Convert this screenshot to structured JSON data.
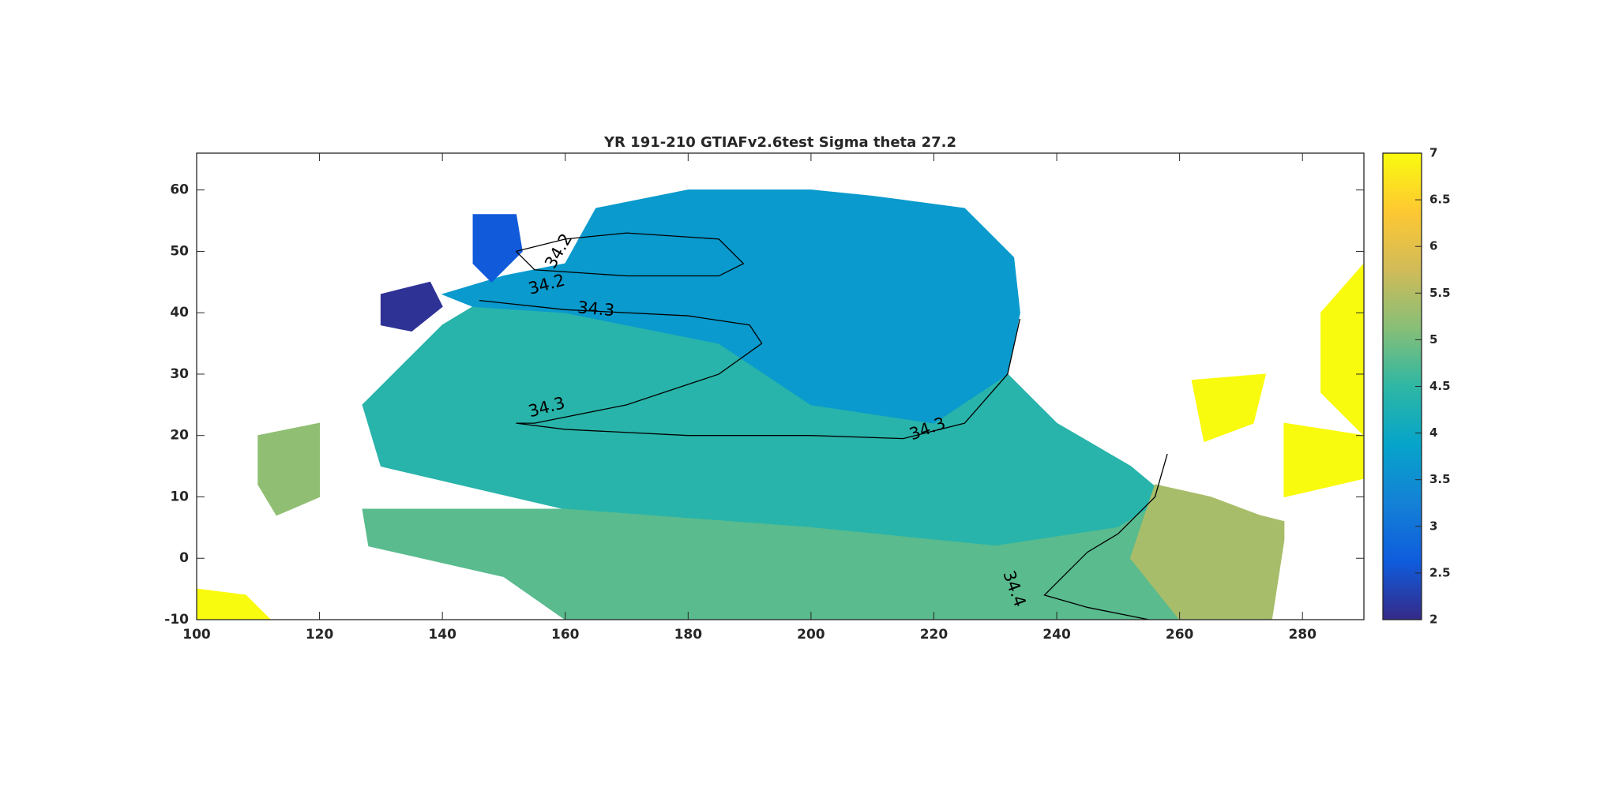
{
  "chart_data": {
    "type": "contour-map",
    "title": "YR 191-210 GTIAFv2.6test Sigma theta 27.2",
    "xlim": [
      100,
      290
    ],
    "ylim": [
      -10,
      66
    ],
    "xticks": [
      100,
      120,
      140,
      160,
      180,
      200,
      220,
      240,
      260,
      280
    ],
    "yticks": [
      -10,
      0,
      10,
      20,
      30,
      40,
      50,
      60
    ],
    "colorbar": {
      "lim": [
        2,
        7
      ],
      "ticks": [
        2,
        2.5,
        3,
        3.5,
        4,
        4.5,
        5,
        5.5,
        6,
        6.5,
        7
      ]
    },
    "colormap": [
      "#352a87",
      "#0f5cdd",
      "#1481d6",
      "#06a4ca",
      "#2eb7a4",
      "#87bf77",
      "#d1bb59",
      "#fec832",
      "#f9fb0e"
    ],
    "regions": [
      {
        "value": 4.4,
        "lon": [
          145,
          160,
          185,
          200,
          220,
          232,
          240,
          252,
          258,
          250,
          230,
          200,
          160,
          130,
          127,
          135,
          140
        ],
        "lat": [
          41,
          40,
          35,
          25,
          22,
          30,
          22,
          15,
          10,
          5,
          2,
          5,
          8,
          15,
          25,
          33,
          38
        ]
      },
      {
        "value": 3.7,
        "lon": [
          140,
          150,
          160,
          165,
          180,
          200,
          210,
          225,
          233,
          234,
          232,
          220,
          200,
          185,
          160,
          145
        ],
        "lat": [
          43,
          46,
          48,
          57,
          60,
          60,
          59,
          57,
          49,
          40,
          30,
          22,
          25,
          35,
          40,
          41
        ]
      },
      {
        "value": 4.8,
        "lon": [
          127,
          160,
          200,
          230,
          250,
          258,
          265,
          260,
          160,
          150,
          128
        ],
        "lat": [
          8,
          8,
          5,
          2,
          5,
          10,
          7,
          -10,
          -10,
          -3,
          2
        ]
      },
      {
        "value": 5.4,
        "lon": [
          256,
          265,
          273,
          277,
          277,
          275,
          260,
          252
        ],
        "lat": [
          12,
          10,
          7,
          6,
          3,
          -10,
          -10,
          0
        ]
      },
      {
        "value": 2.6,
        "lon": [
          145,
          152,
          153,
          148,
          145
        ],
        "lat": [
          56,
          56,
          50,
          45,
          48
        ]
      },
      {
        "value": 2.1,
        "lon": [
          130,
          138,
          140,
          135,
          130
        ],
        "lat": [
          43,
          45,
          41,
          37,
          38
        ]
      },
      {
        "value": 5.2,
        "lon": [
          110,
          120,
          120,
          113,
          110
        ],
        "lat": [
          20,
          22,
          10,
          7,
          12
        ]
      },
      {
        "value": 7,
        "lon": [
          262,
          274,
          272,
          264
        ],
        "lat": [
          29,
          30,
          22,
          19
        ]
      },
      {
        "value": 7,
        "lon": [
          277,
          290,
          290,
          277
        ],
        "lat": [
          22,
          20,
          13,
          10
        ]
      },
      {
        "value": 7,
        "lon": [
          283,
          290,
          290,
          283
        ],
        "lat": [
          40,
          48,
          20,
          27
        ]
      },
      {
        "value": 7,
        "lon": [
          100,
          112,
          108,
          100
        ],
        "lat": [
          -10,
          -10,
          -6,
          -5
        ]
      }
    ],
    "contours": [
      {
        "level": 34.3,
        "lon": [
          146,
          160,
          180,
          190,
          192,
          185,
          170,
          155,
          152,
          160,
          180,
          200,
          215,
          225,
          232,
          234
        ],
        "lat": [
          42,
          40.5,
          39.5,
          38,
          35,
          30,
          25,
          22,
          22,
          21,
          20,
          20,
          19.5,
          22,
          30,
          39
        ]
      },
      {
        "level": 34.2,
        "lon": [
          152,
          160,
          170,
          185,
          189,
          185,
          170,
          155,
          152
        ],
        "lat": [
          50,
          52,
          53,
          52,
          48,
          46,
          46,
          47,
          50
        ]
      },
      {
        "level": 34.4,
        "lon": [
          258,
          256,
          250,
          245,
          240,
          238,
          245,
          255
        ],
        "lat": [
          17,
          10,
          4,
          1,
          -4,
          -6,
          -8,
          -10
        ]
      }
    ],
    "contour_labels": [
      {
        "level": 34.2,
        "lon": 159,
        "lat": 50
      },
      {
        "level": 34.2,
        "lon": 157,
        "lat": 44.5
      },
      {
        "level": 34.3,
        "lon": 165,
        "lat": 40.5
      },
      {
        "level": 34.3,
        "lon": 157,
        "lat": 24.5
      },
      {
        "level": 34.3,
        "lon": 219,
        "lat": 21
      },
      {
        "level": 34.4,
        "lon": 233,
        "lat": -5
      }
    ]
  }
}
